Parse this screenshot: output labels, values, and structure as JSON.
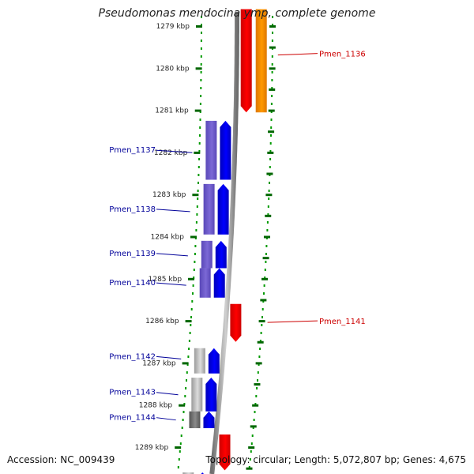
{
  "title": "Pseudomonas mendocina ymp, complete genome",
  "footer": {
    "accession": "Accession: NC_009439",
    "topology": "Topology: circular; Length: 5,072,807 bp; Genes: 4,675"
  },
  "ruler": {
    "unit": "kbp",
    "ticks": [
      1279,
      1280,
      1281,
      1282,
      1283,
      1284,
      1285,
      1286,
      1287,
      1288,
      1289
    ]
  },
  "colors": {
    "forward_strand_gene": "#ff0000",
    "forward_strand_cds": "#ff9900",
    "reverse_strand_gene": "#0000ff",
    "reverse_strand_cds": "#7b68d6",
    "reverse_strand_grey": "#b8b8b8",
    "forward_label": "#cc0000",
    "reverse_label": "#000099",
    "tick": "#006600",
    "dotted_track": "#009900",
    "backbone": "#808080"
  },
  "genes": [
    {
      "locus": "Pmen_1136",
      "strand": "forward",
      "start_kbp": 1278.6,
      "end_kbp": 1281.05,
      "style": "red-orange",
      "label_at_kbp": 1279.65
    },
    {
      "locus": "Pmen_1137",
      "strand": "reverse",
      "start_kbp": 1281.25,
      "end_kbp": 1282.65,
      "style": "blue-purple",
      "label_at_kbp": 1281.95
    },
    {
      "locus": "Pmen_1138",
      "strand": "reverse",
      "start_kbp": 1282.75,
      "end_kbp": 1283.95,
      "style": "blue-purple",
      "label_at_kbp": 1283.35
    },
    {
      "locus": "Pmen_1139",
      "strand": "reverse",
      "start_kbp": 1284.1,
      "end_kbp": 1284.75,
      "style": "blue-purple",
      "label_at_kbp": 1284.4
    },
    {
      "locus": "Pmen_1140",
      "strand": "reverse",
      "start_kbp": 1284.75,
      "end_kbp": 1285.45,
      "style": "blue-purple",
      "label_at_kbp": 1285.1
    },
    {
      "locus": "Pmen_1141",
      "strand": "forward",
      "start_kbp": 1285.6,
      "end_kbp": 1286.5,
      "style": "red",
      "label_at_kbp": 1286.0
    },
    {
      "locus": "Pmen_1142",
      "strand": "reverse",
      "start_kbp": 1286.65,
      "end_kbp": 1287.25,
      "style": "blue-grey",
      "label_at_kbp": 1286.85
    },
    {
      "locus": "Pmen_1143",
      "strand": "reverse",
      "start_kbp": 1287.35,
      "end_kbp": 1288.15,
      "style": "blue-grey",
      "label_at_kbp": 1287.7
    },
    {
      "locus": "Pmen_1144",
      "strand": "reverse",
      "start_kbp": 1288.15,
      "end_kbp": 1288.55,
      "style": "blue-darkgrey",
      "label_at_kbp": 1288.3
    },
    {
      "locus": "",
      "strand": "forward",
      "start_kbp": 1288.7,
      "end_kbp": 1289.55,
      "style": "red",
      "label_at_kbp": null
    },
    {
      "locus": "",
      "strand": "reverse",
      "start_kbp": 1289.6,
      "end_kbp": 1290.2,
      "style": "blue-grey",
      "label_at_kbp": null
    }
  ]
}
